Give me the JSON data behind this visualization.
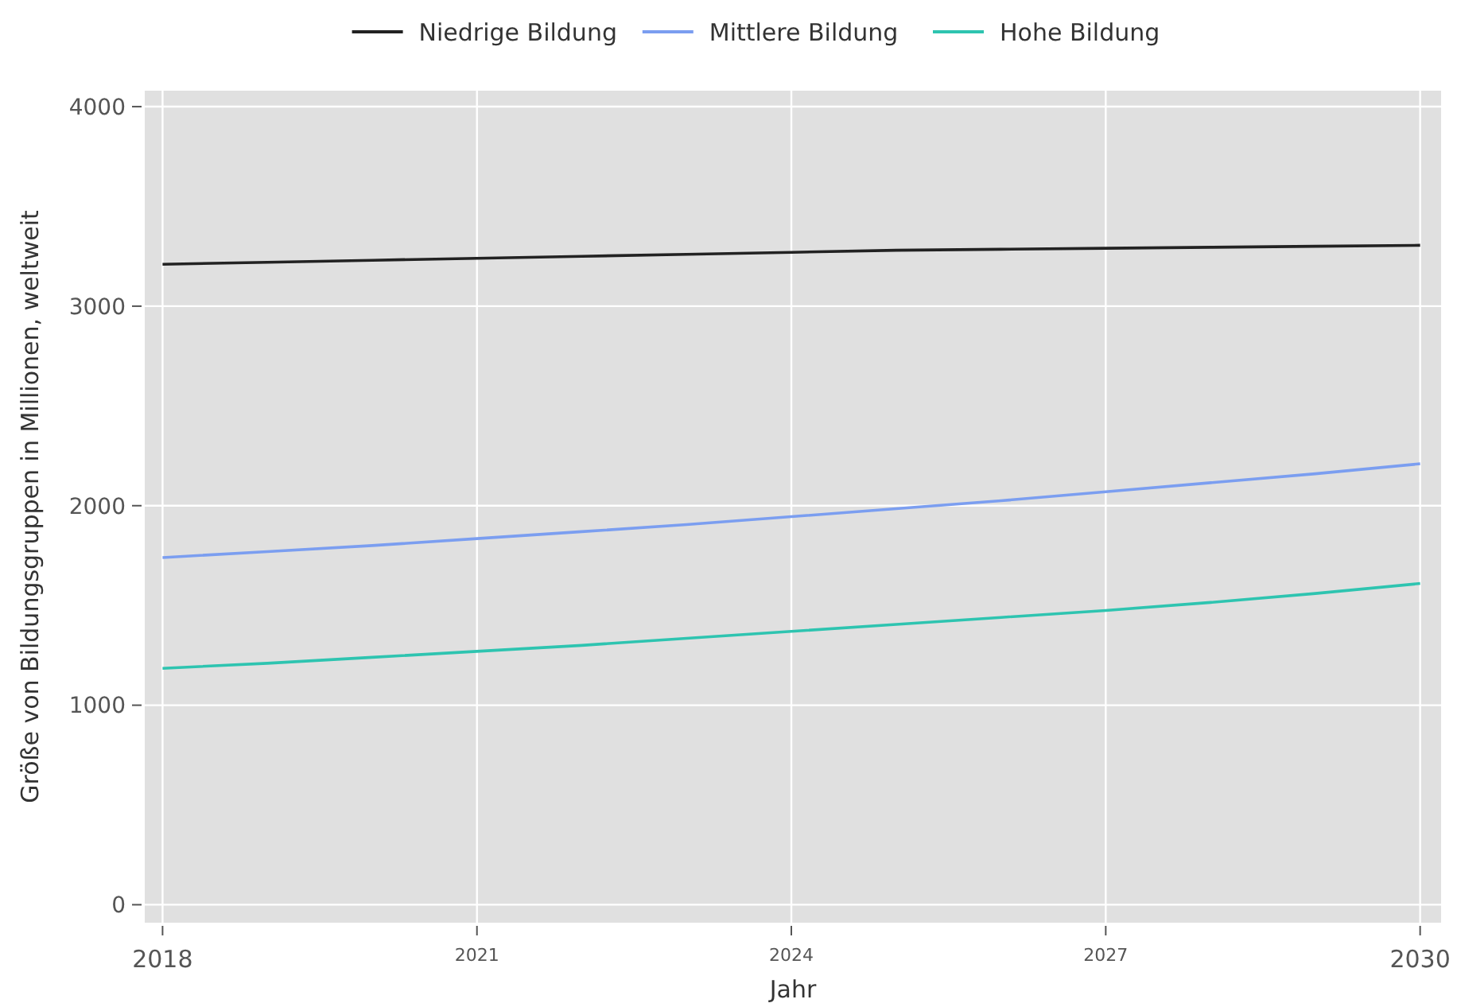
{
  "chart_data": {
    "type": "line",
    "xlabel": "Jahr",
    "ylabel": "Größe von Bildungsgruppen in Millionen, weltweit",
    "x": [
      2018,
      2019,
      2020,
      2021,
      2022,
      2023,
      2024,
      2025,
      2026,
      2027,
      2028,
      2029,
      2030
    ],
    "series": [
      {
        "name": "Niedrige Bildung",
        "color": "#222222",
        "values": [
          3210,
          3220,
          3230,
          3240,
          3250,
          3260,
          3270,
          3280,
          3285,
          3290,
          3295,
          3300,
          3305
        ]
      },
      {
        "name": "Mittlere Bildung",
        "color": "#7b9ef0",
        "values": [
          1740,
          1770,
          1800,
          1835,
          1870,
          1905,
          1945,
          1985,
          2025,
          2070,
          2115,
          2160,
          2210
        ]
      },
      {
        "name": "Hohe Bildung",
        "color": "#2ec4b0",
        "values": [
          1185,
          1210,
          1240,
          1270,
          1300,
          1335,
          1370,
          1405,
          1440,
          1475,
          1515,
          1560,
          1610
        ]
      }
    ],
    "xlim": [
      2017.83,
      2030.2
    ],
    "xticks": [
      2018,
      2021,
      2024,
      2027,
      2030
    ],
    "ylim": [
      -90,
      4080
    ],
    "yticks": [
      0,
      1000,
      2000,
      3000,
      4000
    ],
    "grid": true,
    "legend": "top",
    "line_style": "solid",
    "marker": "none"
  }
}
